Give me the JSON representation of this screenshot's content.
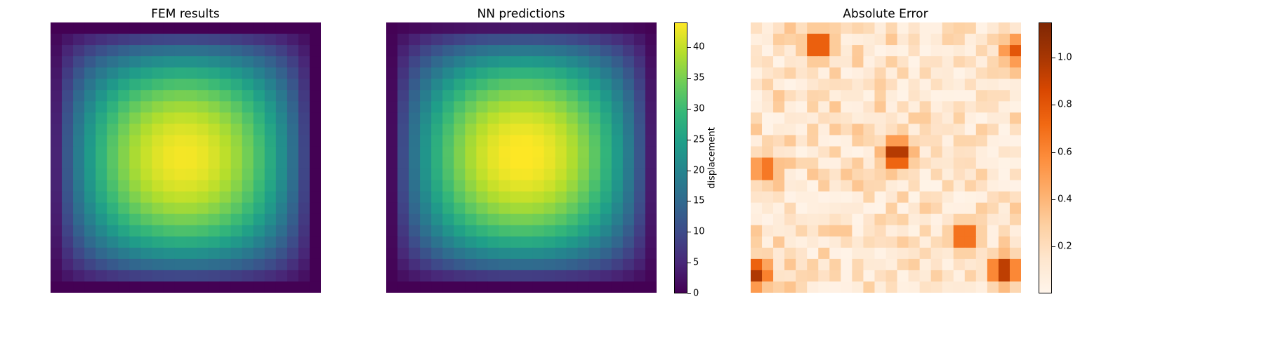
{
  "figure": {
    "panels": [
      {
        "title": "FEM results"
      },
      {
        "title": "NN predictions"
      },
      {
        "title": "Absolute Error"
      }
    ],
    "colorbars": [
      {
        "label": "displacement",
        "ticks": [
          "0",
          "5",
          "10",
          "15",
          "20",
          "25",
          "30",
          "35",
          "40"
        ]
      },
      {
        "label": "",
        "ticks": [
          "0.2",
          "0.4",
          "0.6",
          "0.8",
          "1.0"
        ]
      }
    ]
  },
  "chart_data": [
    {
      "type": "heatmap",
      "title": "FEM results",
      "grid_size": [
        24,
        24
      ],
      "field": "displacement",
      "description": "smooth displacement field, near 0 at corners, peak near center-left",
      "peak": {
        "value": 43.5,
        "row": 11.5,
        "col": 11.3
      },
      "value_range": [
        0,
        44
      ],
      "colormap": "viridis",
      "colorbar": false
    },
    {
      "type": "heatmap",
      "title": "NN predictions",
      "grid_size": [
        24,
        24
      ],
      "field": "displacement",
      "peak": {
        "value": 44.3,
        "row": 11.3,
        "col": 11.6
      },
      "value_range": [
        0,
        44
      ],
      "colormap": "viridis",
      "colorbar": true,
      "colorbar_label": "displacement",
      "colorbar_ticks": [
        0,
        5,
        10,
        15,
        20,
        25,
        30,
        35,
        40
      ]
    },
    {
      "type": "heatmap",
      "title": "Absolute Error",
      "grid_size": [
        24,
        24
      ],
      "value_range": [
        0.0,
        1.15
      ],
      "colormap": "Oranges",
      "colorbar": true,
      "colorbar_ticks": [
        0.2,
        0.4,
        0.6,
        0.8,
        1.0
      ],
      "hotspots": [
        {
          "row": 11.2,
          "col": 12.5,
          "value": 1.1
        },
        {
          "row": 21.5,
          "col": 22.0,
          "value": 1.05
        },
        {
          "row": 21.8,
          "col": 0.0,
          "value": 1.0
        },
        {
          "row": 1.5,
          "col": 5.5,
          "value": 0.95
        },
        {
          "row": 18.5,
          "col": 18.5,
          "value": 0.85
        },
        {
          "row": 2.0,
          "col": 23.0,
          "value": 0.8
        },
        {
          "row": 12.5,
          "col": 0.8,
          "value": 0.75
        }
      ]
    }
  ]
}
